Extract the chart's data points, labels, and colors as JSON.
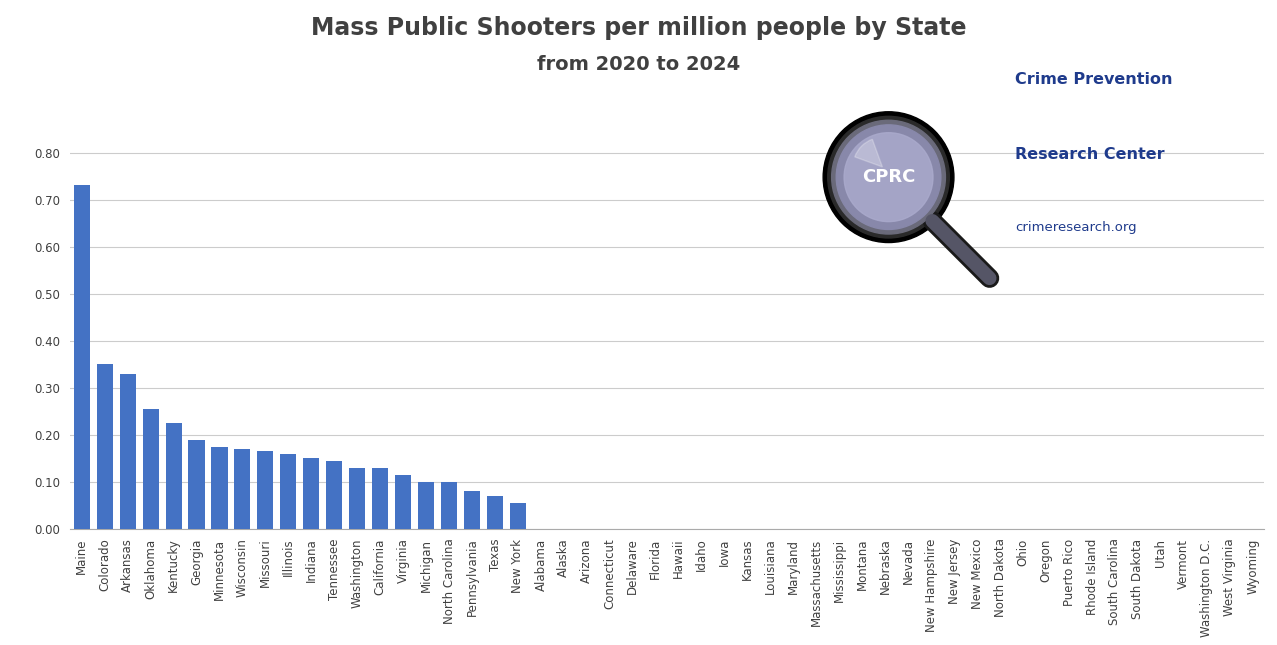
{
  "title_line1": "Mass Public Shooters per million people by State",
  "title_line2": "from 2020 to 2024",
  "bar_color": "#4472C4",
  "background_color": "#FFFFFF",
  "categories": [
    "Maine",
    "Colorado",
    "Arkansas",
    "Oklahoma",
    "Kentucky",
    "Georgia",
    "Minnesota",
    "Wisconsin",
    "Missouri",
    "Illinois",
    "Indiana",
    "Tennessee",
    "Washington",
    "California",
    "Virginia",
    "Michigan",
    "North Carolina",
    "Pennsylvania",
    "Texas",
    "New York",
    "Alabama",
    "Alaska",
    "Arizona",
    "Connecticut",
    "Delaware",
    "Florida",
    "Hawaii",
    "Idaho",
    "Iowa",
    "Kansas",
    "Louisiana",
    "Maryland",
    "Massachusetts",
    "Mississippi",
    "Montana",
    "Nebraska",
    "Nevada",
    "New Hampshire",
    "New Jersey",
    "New Mexico",
    "North Dakota",
    "Ohio",
    "Oregon",
    "Puerto Rico",
    "Rhode Island",
    "South Carolina",
    "South Dakota",
    "Utah",
    "Vermont",
    "Washington D.C.",
    "West Virginia",
    "Wyoming"
  ],
  "values": [
    0.73,
    0.35,
    0.33,
    0.255,
    0.225,
    0.19,
    0.175,
    0.17,
    0.165,
    0.16,
    0.15,
    0.145,
    0.13,
    0.13,
    0.115,
    0.1,
    0.1,
    0.08,
    0.07,
    0.055,
    0.0,
    0.0,
    0.0,
    0.0,
    0.0,
    0.0,
    0.0,
    0.0,
    0.0,
    0.0,
    0.0,
    0.0,
    0.0,
    0.0,
    0.0,
    0.0,
    0.0,
    0.0,
    0.0,
    0.0,
    0.0,
    0.0,
    0.0,
    0.0,
    0.0,
    0.0,
    0.0,
    0.0,
    0.0,
    0.0,
    0.0,
    0.0
  ],
  "ylim": [
    0,
    0.85
  ],
  "yticks": [
    0.0,
    0.1,
    0.2,
    0.3,
    0.4,
    0.5,
    0.6,
    0.7,
    0.8
  ],
  "grid_color": "#CCCCCC",
  "title_color": "#404040",
  "tick_label_color": "#404040",
  "title_fontsize": 17,
  "subtitle_fontsize": 14,
  "tick_fontsize": 8.5,
  "logo_text_color": "#1F3B8C",
  "logo_url_color": "#1F3B8C"
}
